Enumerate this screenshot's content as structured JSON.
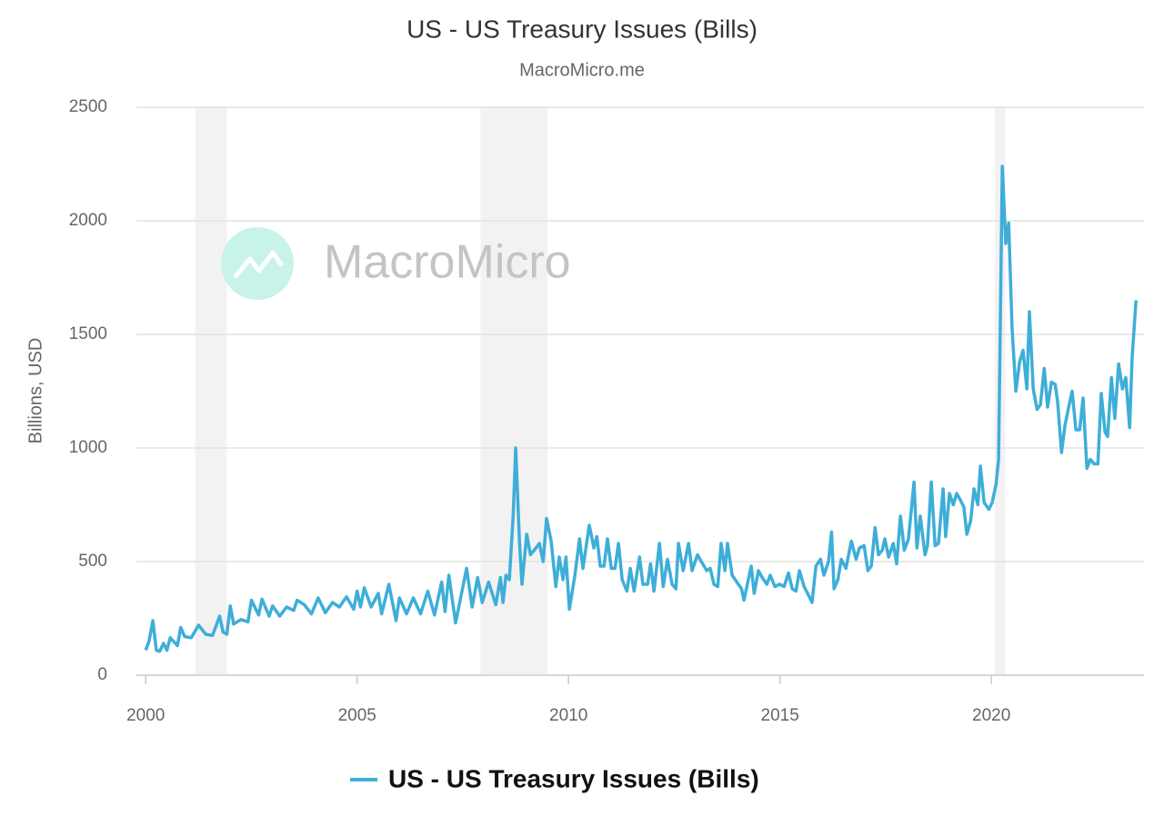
{
  "chart_data": {
    "type": "line",
    "title": "US - US Treasury Issues (Bills)",
    "subtitle": "MacroMicro.me",
    "watermark": "MacroMicro",
    "ylabel": "Billions, USD",
    "xlim": [
      1999.78,
      2023.61
    ],
    "ylim": [
      0,
      2500
    ],
    "xticks": [
      2000,
      2005,
      2010,
      2015,
      2020
    ],
    "yticks": [
      0,
      500,
      1000,
      1500,
      2000,
      2500
    ],
    "grid": true,
    "recessions": [
      [
        2001.17,
        2001.92
      ],
      [
        2007.92,
        2009.5
      ],
      [
        2020.08,
        2020.33
      ]
    ],
    "x": [
      2000.0,
      2000.08,
      2000.17,
      2000.25,
      2000.33,
      2000.42,
      2000.5,
      2000.58,
      2000.75,
      2000.83,
      2000.92,
      2001.08,
      2001.25,
      2001.42,
      2001.58,
      2001.75,
      2001.83,
      2001.92,
      2002.0,
      2002.08,
      2002.25,
      2002.42,
      2002.5,
      2002.67,
      2002.75,
      2002.92,
      2003.0,
      2003.17,
      2003.33,
      2003.5,
      2003.58,
      2003.75,
      2003.92,
      2004.08,
      2004.25,
      2004.42,
      2004.58,
      2004.75,
      2004.92,
      2005.0,
      2005.08,
      2005.17,
      2005.33,
      2005.5,
      2005.58,
      2005.75,
      2005.92,
      2006.0,
      2006.17,
      2006.33,
      2006.5,
      2006.67,
      2006.83,
      2007.0,
      2007.08,
      2007.17,
      2007.33,
      2007.59,
      2007.72,
      2007.85,
      2007.96,
      2008.11,
      2008.28,
      2008.39,
      2008.45,
      2008.52,
      2008.6,
      2008.69,
      2008.75,
      2008.84,
      2008.9,
      2009.01,
      2009.1,
      2009.23,
      2009.31,
      2009.4,
      2009.48,
      2009.59,
      2009.7,
      2009.78,
      2009.87,
      2009.94,
      2010.02,
      2010.15,
      2010.26,
      2010.34,
      2010.49,
      2010.6,
      2010.67,
      2010.75,
      2010.84,
      2010.92,
      2011.01,
      2011.1,
      2011.18,
      2011.27,
      2011.38,
      2011.46,
      2011.55,
      2011.68,
      2011.76,
      2011.87,
      2011.94,
      2012.02,
      2012.15,
      2012.24,
      2012.34,
      2012.45,
      2012.54,
      2012.6,
      2012.71,
      2012.84,
      2012.92,
      2013.05,
      2013.14,
      2013.27,
      2013.35,
      2013.44,
      2013.53,
      2013.61,
      2013.7,
      2013.76,
      2013.87,
      2013.98,
      2014.09,
      2014.15,
      2014.32,
      2014.39,
      2014.49,
      2014.58,
      2014.69,
      2014.77,
      2014.88,
      2014.99,
      2015.1,
      2015.2,
      2015.29,
      2015.38,
      2015.46,
      2015.57,
      2015.68,
      2015.76,
      2015.85,
      2015.96,
      2016.04,
      2016.15,
      2016.22,
      2016.28,
      2016.37,
      2016.45,
      2016.56,
      2016.69,
      2016.8,
      2016.88,
      2016.99,
      2017.08,
      2017.16,
      2017.25,
      2017.33,
      2017.42,
      2017.48,
      2017.57,
      2017.68,
      2017.76,
      2017.85,
      2017.94,
      2018.04,
      2018.17,
      2018.24,
      2018.32,
      2018.43,
      2018.49,
      2018.58,
      2018.67,
      2018.75,
      2018.86,
      2018.92,
      2019.01,
      2019.1,
      2019.18,
      2019.27,
      2019.35,
      2019.42,
      2019.51,
      2019.59,
      2019.68,
      2019.74,
      2019.83,
      2019.94,
      2020.02,
      2020.11,
      2020.17,
      2020.26,
      2020.34,
      2020.41,
      2020.49,
      2020.58,
      2020.67,
      2020.75,
      2020.84,
      2020.9,
      2020.99,
      2021.08,
      2021.16,
      2021.25,
      2021.33,
      2021.42,
      2021.51,
      2021.57,
      2021.66,
      2021.74,
      2021.83,
      2021.91,
      2022.0,
      2022.09,
      2022.17,
      2022.26,
      2022.34,
      2022.43,
      2022.52,
      2022.6,
      2022.69,
      2022.75,
      2022.84,
      2022.92,
      2023.01,
      2023.1,
      2023.18,
      2023.27,
      2023.33,
      2023.42
    ],
    "series": [
      {
        "name": "US - US Treasury Issues (Bills)",
        "color": "#3eaed8",
        "values": [
          110,
          150,
          240,
          110,
          105,
          140,
          110,
          165,
          130,
          210,
          170,
          165,
          220,
          180,
          175,
          260,
          190,
          180,
          305,
          225,
          245,
          235,
          330,
          265,
          335,
          260,
          305,
          260,
          300,
          285,
          330,
          310,
          270,
          340,
          275,
          320,
          300,
          345,
          290,
          370,
          300,
          385,
          300,
          360,
          270,
          400,
          240,
          340,
          270,
          340,
          270,
          370,
          265,
          410,
          280,
          440,
          230,
          470,
          300,
          430,
          320,
          410,
          310,
          430,
          320,
          440,
          420,
          700,
          1000,
          580,
          400,
          620,
          530,
          560,
          580,
          500,
          690,
          590,
          390,
          520,
          420,
          520,
          290,
          440,
          600,
          470,
          660,
          560,
          610,
          480,
          480,
          600,
          470,
          470,
          580,
          420,
          370,
          470,
          370,
          520,
          400,
          400,
          490,
          370,
          580,
          390,
          510,
          400,
          380,
          580,
          460,
          580,
          460,
          530,
          500,
          460,
          470,
          400,
          390,
          580,
          460,
          580,
          440,
          410,
          380,
          330,
          480,
          360,
          460,
          430,
          400,
          440,
          390,
          400,
          390,
          450,
          380,
          370,
          460,
          390,
          350,
          320,
          480,
          510,
          440,
          500,
          630,
          380,
          420,
          510,
          470,
          590,
          510,
          560,
          570,
          460,
          480,
          650,
          530,
          550,
          600,
          520,
          580,
          490,
          700,
          550,
          600,
          850,
          560,
          700,
          530,
          570,
          850,
          570,
          580,
          820,
          610,
          800,
          750,
          800,
          770,
          740,
          620,
          680,
          820,
          750,
          920,
          760,
          730,
          760,
          840,
          950,
          2240,
          1900,
          1990,
          1530,
          1250,
          1380,
          1430,
          1260,
          1600,
          1260,
          1170,
          1190,
          1350,
          1180,
          1290,
          1280,
          1200,
          980,
          1100,
          1180,
          1250,
          1080,
          1080,
          1220,
          910,
          950,
          930,
          930,
          1240,
          1070,
          1050,
          1310,
          1130,
          1370,
          1260,
          1310,
          1090,
          1400,
          1650
        ]
      }
    ]
  }
}
